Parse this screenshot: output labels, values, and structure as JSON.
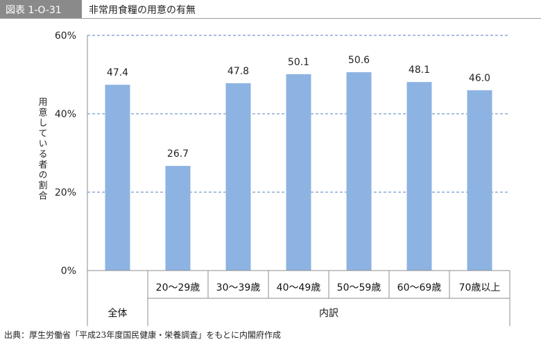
{
  "header": {
    "badge": "図表 1-O-31",
    "title": "非常用食糧の用意の有無"
  },
  "source": "出典：厚生労働省「平成23年度国民健康・栄養調査」をもとに内閣府作成",
  "chart_data": {
    "type": "bar",
    "title": "非常用食糧の用意の有無",
    "ylabel": "用意している者の割合",
    "ylim": [
      0,
      60
    ],
    "yticks": [
      0,
      20,
      40,
      60
    ],
    "ytick_labels": [
      "0%",
      "20%",
      "40%",
      "60%"
    ],
    "categories": [
      "全体",
      "20〜29歳",
      "30〜39歳",
      "40〜49歳",
      "50〜59歳",
      "60〜69歳",
      "70歳以上"
    ],
    "values": [
      47.4,
      26.7,
      47.8,
      50.1,
      50.6,
      48.1,
      46.0
    ],
    "data_labels": [
      "47.4",
      "26.7",
      "47.8",
      "50.1",
      "50.6",
      "48.1",
      "46.0"
    ],
    "groups": [
      {
        "label": "全体",
        "members": [
          "全体"
        ]
      },
      {
        "label": "内訳",
        "members": [
          "20〜29歳",
          "30〜39歳",
          "40〜49歳",
          "50〜59歳",
          "60〜69歳",
          "70歳以上"
        ]
      }
    ],
    "bar_color": "#8db3e2",
    "grid": true,
    "grid_style": "dashed",
    "grid_color": "#4f81bd",
    "legend": "none"
  }
}
